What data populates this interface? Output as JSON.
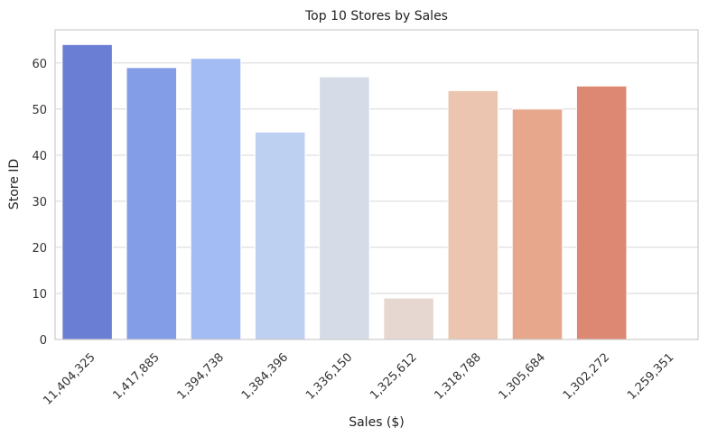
{
  "chart_data": {
    "type": "bar",
    "title": "Top 10 Stores by Sales",
    "xlabel": "Sales ($)",
    "ylabel": "Store ID",
    "categories": [
      "11,404,325",
      "1,417,885",
      "1,394,738",
      "1,384,396",
      "1,336,150",
      "1,325,612",
      "1,318,788",
      "1,305,684",
      "1,302,272",
      "1,259,351"
    ],
    "values": [
      64,
      59,
      61,
      45,
      57,
      9,
      54,
      50,
      55,
      0
    ],
    "colors": [
      "#6a7fd4",
      "#839ee6",
      "#a3bcf4",
      "#bdd0f1",
      "#d5dce8",
      "#e6d8d0",
      "#ecc5b0",
      "#e7a78c",
      "#dc8872",
      "#cf6a5e"
    ],
    "ylim": [
      0,
      67.2
    ],
    "yticks": [
      0,
      10,
      20,
      30,
      40,
      50,
      60
    ],
    "grid": "y",
    "legend": "none"
  }
}
